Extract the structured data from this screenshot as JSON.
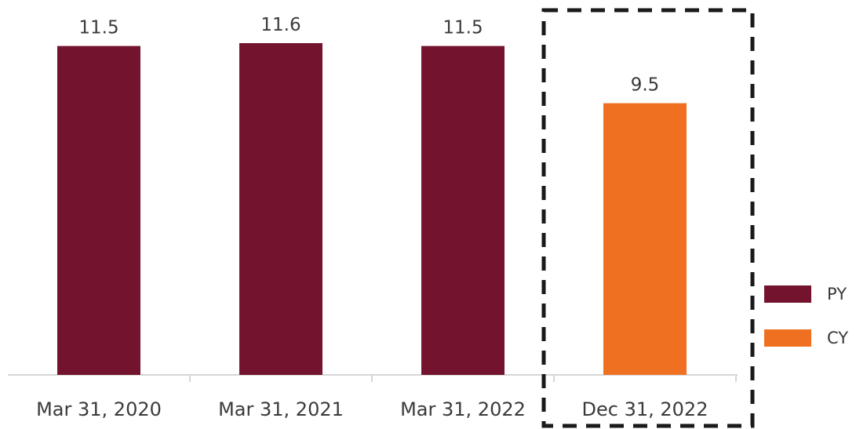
{
  "chart_data": {
    "type": "bar",
    "categories": [
      "Mar 31, 2020",
      "Mar 31, 2021",
      "Mar 31, 2022",
      "Dec 31, 2022"
    ],
    "series": [
      {
        "name": "PY",
        "color": "#74132e",
        "values": [
          11.5,
          11.6,
          11.5,
          null
        ]
      },
      {
        "name": "CY",
        "color": "#f07022",
        "values": [
          null,
          null,
          null,
          9.5
        ]
      }
    ],
    "data_labels": [
      "11.5",
      "11.6",
      "11.5",
      "9.5"
    ],
    "ylim": [
      0,
      11.6
    ],
    "grid": false,
    "legend_position": "right",
    "highlight": {
      "category": "Dec 31, 2022",
      "style": "dashed-box"
    }
  }
}
